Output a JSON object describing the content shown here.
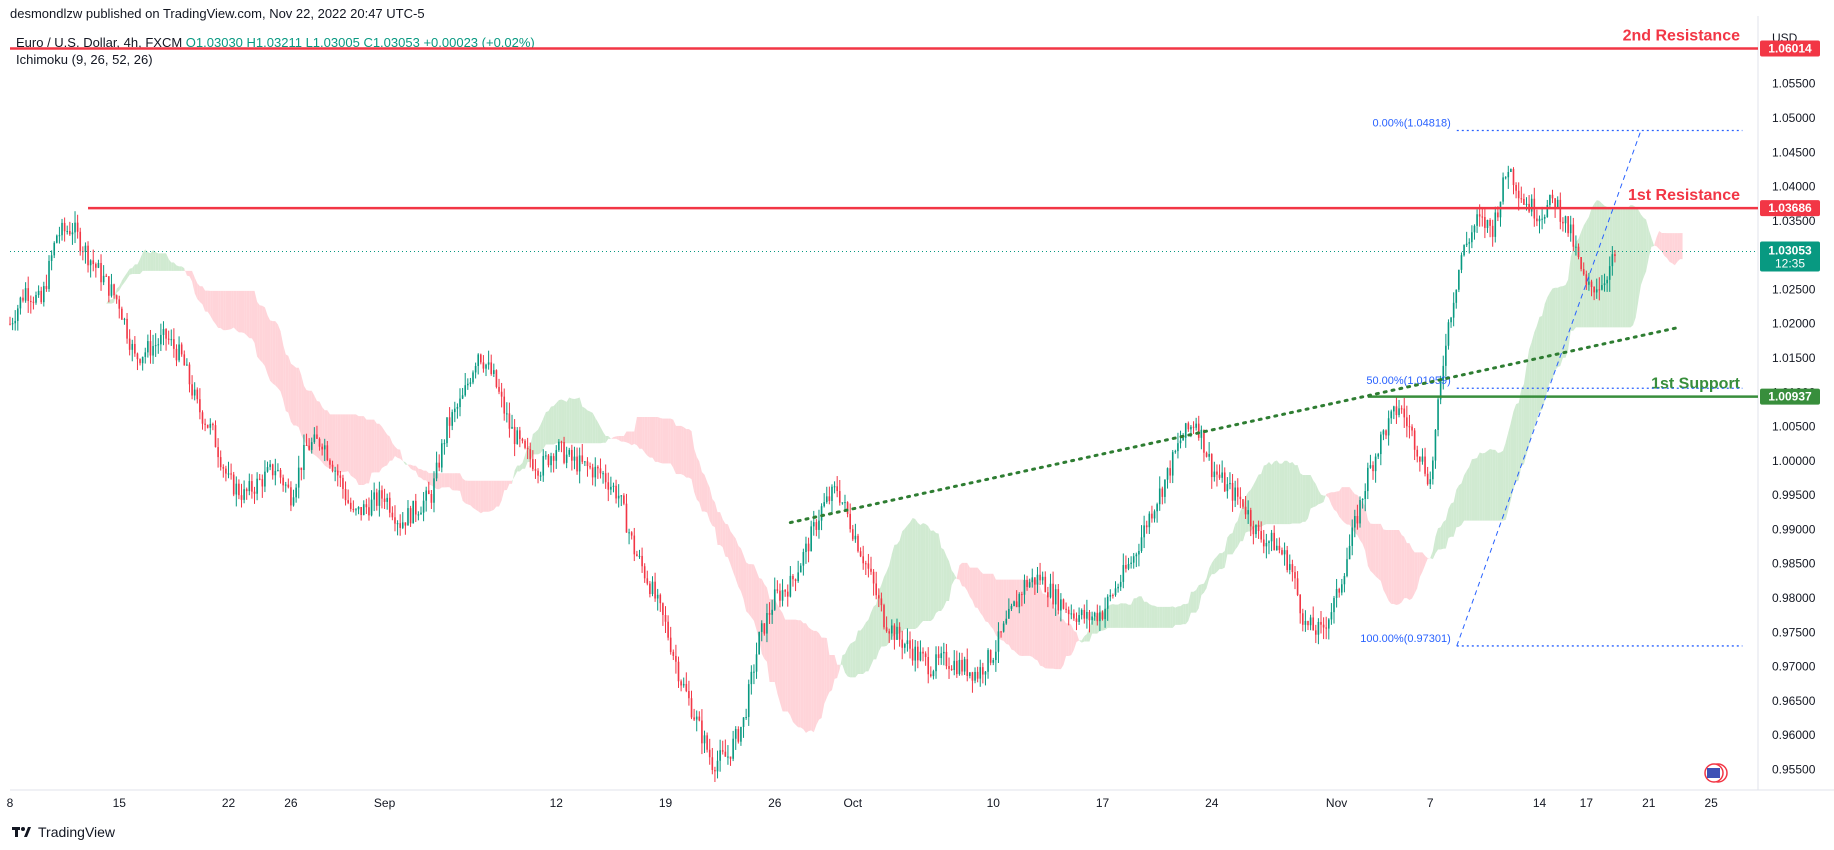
{
  "header": {
    "published": "desmondlzw published on TradingView.com, Nov 22, 2022 20:47 UTC-5"
  },
  "legend": {
    "symbol": "Euro / U.S. Dollar, 4h, FXCM",
    "open": "O1.03030",
    "high": "H1.03211",
    "low": "L1.03005",
    "close": "C1.03053",
    "change": "+0.00023 (+0.02%)",
    "indicator": "Ichimoku (9, 26, 52, 26)"
  },
  "footer": {
    "brand": "TradingView"
  },
  "colors": {
    "up": "#089981",
    "down": "#f23645",
    "resistance": "#f23645",
    "support": "#388e3c",
    "fib": "#2962ff",
    "cloud_bull": "#c8e6c9",
    "cloud_bear": "#ffcdd2"
  },
  "chart_data": {
    "type": "candlestick",
    "currency": "USD",
    "ylim": [
      0.952,
      1.064
    ],
    "y_ticks": [
      "1.05500",
      "1.05000",
      "1.04500",
      "1.04000",
      "1.03500",
      "1.03000",
      "1.02500",
      "1.02000",
      "1.01500",
      "1.01000",
      "1.00500",
      "1.00000",
      "0.99500",
      "0.99000",
      "0.98500",
      "0.98000",
      "0.97500",
      "0.97000",
      "0.96500",
      "0.96000",
      "0.95500"
    ],
    "x_ticks": [
      {
        "label": "8",
        "day": 0
      },
      {
        "label": "15",
        "day": 7
      },
      {
        "label": "22",
        "day": 14
      },
      {
        "label": "26",
        "day": 18
      },
      {
        "label": "Sep",
        "day": 24
      },
      {
        "label": "12",
        "day": 35
      },
      {
        "label": "19",
        "day": 42
      },
      {
        "label": "26",
        "day": 49
      },
      {
        "label": "Oct",
        "day": 54
      },
      {
        "label": "10",
        "day": 63
      },
      {
        "label": "17",
        "day": 70
      },
      {
        "label": "24",
        "day": 77
      },
      {
        "label": "Nov",
        "day": 85
      },
      {
        "label": "7",
        "day": 91
      },
      {
        "label": "14",
        "day": 98
      },
      {
        "label": "17",
        "day": 101
      },
      {
        "label": "21",
        "day": 105
      },
      {
        "label": "25",
        "day": 109
      }
    ],
    "price_path": [
      [
        0,
        1.02
      ],
      [
        1,
        1.025
      ],
      [
        2,
        1.023
      ],
      [
        3,
        1.033
      ],
      [
        4,
        1.034
      ],
      [
        5,
        1.03
      ],
      [
        7,
        1.023
      ],
      [
        8,
        1.015
      ],
      [
        10,
        1.018
      ],
      [
        11,
        1.015
      ],
      [
        12,
        1.008
      ],
      [
        13,
        1.004
      ],
      [
        14,
        0.997
      ],
      [
        15,
        0.995
      ],
      [
        17,
        0.999
      ],
      [
        18,
        0.995
      ],
      [
        19,
        1.002
      ],
      [
        20,
        1.003
      ],
      [
        21,
        0.998
      ],
      [
        22,
        0.992
      ],
      [
        24,
        0.995
      ],
      [
        25,
        0.991
      ],
      [
        27,
        0.995
      ],
      [
        28,
        1.005
      ],
      [
        29,
        1.009
      ],
      [
        30,
        1.016
      ],
      [
        31,
        1.012
      ],
      [
        32,
        1.005
      ],
      [
        33,
        1.001
      ],
      [
        34,
        0.999
      ],
      [
        35,
        1.002
      ],
      [
        36,
        1.0
      ],
      [
        37,
        0.999
      ],
      [
        38,
        0.998
      ],
      [
        39,
        0.995
      ],
      [
        40,
        0.987
      ],
      [
        41,
        0.982
      ],
      [
        42,
        0.976
      ],
      [
        43,
        0.968
      ],
      [
        44,
        0.962
      ],
      [
        45,
        0.956
      ],
      [
        46,
        0.957
      ],
      [
        47,
        0.962
      ],
      [
        48,
        0.974
      ],
      [
        49,
        0.98
      ],
      [
        50,
        0.982
      ],
      [
        51,
        0.987
      ],
      [
        52,
        0.993
      ],
      [
        53,
        0.996
      ],
      [
        54,
        0.99
      ],
      [
        55,
        0.984
      ],
      [
        56,
        0.977
      ],
      [
        57,
        0.974
      ],
      [
        58,
        0.972
      ],
      [
        59,
        0.97
      ],
      [
        60,
        0.971
      ],
      [
        61,
        0.97
      ],
      [
        62,
        0.969
      ],
      [
        63,
        0.972
      ],
      [
        64,
        0.977
      ],
      [
        65,
        0.982
      ],
      [
        66,
        0.983
      ],
      [
        67,
        0.98
      ],
      [
        68,
        0.978
      ],
      [
        69,
        0.977
      ],
      [
        70,
        0.978
      ],
      [
        71,
        0.982
      ],
      [
        72,
        0.986
      ],
      [
        73,
        0.992
      ],
      [
        74,
        0.997
      ],
      [
        75,
        1.003
      ],
      [
        76,
        1.006
      ],
      [
        77,
        0.999
      ],
      [
        78,
        0.996
      ],
      [
        79,
        0.994
      ],
      [
        80,
        0.989
      ],
      [
        81,
        0.988
      ],
      [
        82,
        0.985
      ],
      [
        83,
        0.976
      ],
      [
        84,
        0.975
      ],
      [
        85,
        0.98
      ],
      [
        86,
        0.989
      ],
      [
        87,
        0.998
      ],
      [
        88,
        1.004
      ],
      [
        89,
        1.008
      ],
      [
        90,
        1.003
      ],
      [
        91,
        0.997
      ],
      [
        92,
        1.018
      ],
      [
        93,
        1.03
      ],
      [
        94,
        1.035
      ],
      [
        95,
        1.034
      ],
      [
        96,
        1.043
      ],
      [
        97,
        1.038
      ],
      [
        98,
        1.036
      ],
      [
        99,
        1.038
      ],
      [
        100,
        1.033
      ],
      [
        101,
        1.025
      ],
      [
        102,
        1.026
      ],
      [
        103,
        1.0305
      ]
    ],
    "levels": [
      {
        "name": "2nd Resistance",
        "value": "1.06014",
        "price": 1.06014,
        "kind": "resistance"
      },
      {
        "name": "1st Resistance",
        "value": "1.03686",
        "price": 1.03686,
        "kind": "resistance"
      },
      {
        "name": "1st Support",
        "value": "1.00937",
        "price": 1.00937,
        "kind": "support"
      }
    ],
    "last_price": {
      "value": "1.03053",
      "price": 1.03053,
      "countdown": "12:35"
    },
    "fib": [
      {
        "label": "0.00%(1.04818)",
        "price": 1.04818
      },
      {
        "label": "50.00%(1.01059)",
        "price": 1.01059
      },
      {
        "label": "100.00%(0.97301)",
        "price": 0.97301
      }
    ],
    "trendline": {
      "from": {
        "day": 50,
        "price": 0.991
      },
      "to": {
        "day": 107,
        "price": 1.0195
      }
    },
    "support_from_day": 87,
    "resistance_from_day": 5
  }
}
